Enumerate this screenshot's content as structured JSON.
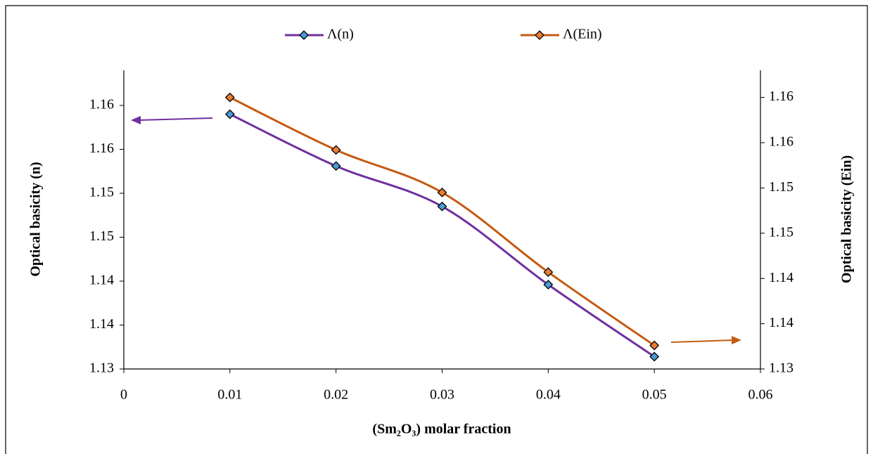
{
  "chart_data": {
    "type": "line",
    "x": [
      0.01,
      0.02,
      0.03,
      0.04,
      0.05
    ],
    "xlim": [
      0,
      0.06
    ],
    "xticks": [
      0,
      0.01,
      0.02,
      0.03,
      0.04,
      0.05,
      0.06
    ],
    "ylim": [
      1.13,
      1.164
    ],
    "yticks": [
      {
        "value": 1.13,
        "label": "1.13"
      },
      {
        "value": 1.135,
        "label": "1.14"
      },
      {
        "value": 1.14,
        "label": "1.14"
      },
      {
        "value": 1.145,
        "label": "1.15"
      },
      {
        "value": 1.15,
        "label": "1.15"
      },
      {
        "value": 1.155,
        "label": "1.16"
      },
      {
        "value": 1.16,
        "label": "1.16"
      }
    ],
    "y2lim": [
      1.13,
      1.163
    ],
    "y2ticks": [
      {
        "value": 1.13,
        "label": "1.13"
      },
      {
        "value": 1.135,
        "label": "1.14"
      },
      {
        "value": 1.14,
        "label": "1.14"
      },
      {
        "value": 1.145,
        "label": "1.15"
      },
      {
        "value": 1.15,
        "label": "1.15"
      },
      {
        "value": 1.155,
        "label": "1.16"
      },
      {
        "value": 1.16,
        "label": "1.16"
      }
    ],
    "xlabel": "(Sm₂O₃) molar fraction",
    "ylabel": "Optical basicity (n)",
    "y2label": "Optical basicity (Ein)",
    "grid": false,
    "legend": "top",
    "series": [
      {
        "name": "Λ(n)",
        "color": "#7030a0",
        "marker_color": "#4a9bd4",
        "values": [
          1.159,
          1.1531,
          1.1485,
          1.1396,
          1.1314
        ]
      },
      {
        "name": "Λ(Ein)",
        "color": "#c55a11",
        "marker_color": "#ed7d31",
        "axis": "y2",
        "values": [
          1.16,
          1.1542,
          1.1495,
          1.1407,
          1.1326
        ]
      }
    ]
  }
}
